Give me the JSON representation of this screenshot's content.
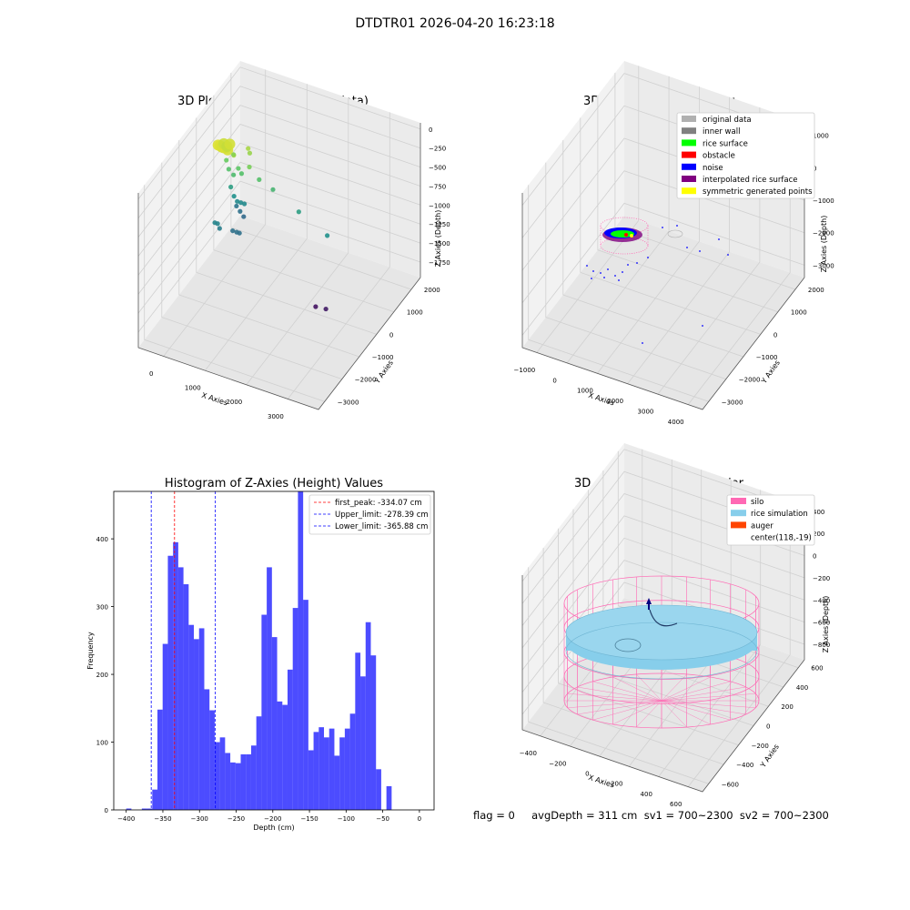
{
  "window": {
    "suptitle": "DTDTR01 2026-04-20 16:23:18"
  },
  "footer": {
    "text": "flag = 0     avgDepth = 311 cm  sv1 = 700~2300  sv2 = 700~2300"
  },
  "chart_data": [
    {
      "type": "scatter",
      "projection": "3d",
      "title": "3D Plot of Silo Interior(row data)",
      "xlabel": "X Axies",
      "ylabel": "Y Axies",
      "zlabel": "Z Axies (Depth)",
      "xticks": [
        "0",
        "1000",
        "2000",
        "3000"
      ],
      "yticks": [
        "2000",
        "1000",
        "0",
        "−1000",
        "−2000",
        "−3000"
      ],
      "zticks": [
        "0",
        "−250",
        "−500",
        "−750",
        "−1000",
        "−1250",
        "−1500",
        "−1750"
      ],
      "xlim": [
        -600,
        3900
      ],
      "ylim": [
        -3300,
        2400
      ],
      "zlim": [
        -1850,
        50
      ],
      "colormap": "viridis",
      "grid": true,
      "points_x": [
        120,
        170,
        210,
        260,
        310,
        360,
        150,
        230,
        300,
        400,
        260,
        80,
        140,
        260,
        380,
        460,
        80,
        160,
        240,
        330,
        420,
        110,
        200,
        290,
        180,
        60,
        130,
        350,
        450,
        520,
        580,
        620,
        700,
        900,
        1200,
        1800,
        2600,
        2700,
        2400
      ],
      "points_y": [
        -450,
        -450,
        -450,
        -450,
        -450,
        -450,
        -200,
        -200,
        -200,
        -200,
        100,
        100,
        100,
        100,
        100,
        100,
        350,
        350,
        350,
        350,
        350,
        600,
        600,
        600,
        -500,
        -500,
        -500,
        -150,
        -150,
        -150,
        200,
        200,
        0,
        100,
        200,
        300,
        100,
        -200,
        -100
      ],
      "points_z": [
        -50,
        -50,
        -60,
        -60,
        -50,
        -70,
        -100,
        -120,
        -80,
        -200,
        -300,
        -400,
        -500,
        -550,
        -450,
        -500,
        -800,
        -900,
        -950,
        -950,
        -950,
        -1100,
        -1150,
        -1200,
        -1050,
        -1000,
        -1000,
        -1150,
        -1150,
        -1150,
        -200,
        -250,
        -350,
        -500,
        -600,
        -800,
        -900,
        -1700,
        -1750
      ]
    },
    {
      "type": "scatter",
      "projection": "3d",
      "title": "3D classify of Silo Interior",
      "xlabel": "X Axies",
      "ylabel": "Y Axies",
      "zlabel": "Z Axies (Depth)",
      "xticks": [
        "−1000",
        "0",
        "1000",
        "2000",
        "3000",
        "4000"
      ],
      "yticks": [
        "2000",
        "1000",
        "0",
        "−1000",
        "−2000",
        "−3000"
      ],
      "zticks": [
        "1000",
        "0",
        "−1000",
        "−2000",
        "−3000"
      ],
      "xlim": [
        -1400,
        4500
      ],
      "ylim": [
        -3300,
        2400
      ],
      "zlim": [
        -3400,
        1400
      ],
      "grid": true,
      "legend_position": "upper right",
      "legend": [
        {
          "label": "original data",
          "color": "#b0b0b0"
        },
        {
          "label": "inner wall",
          "color": "#808080"
        },
        {
          "label": "rice surface",
          "color": "#00ff00"
        },
        {
          "label": "obstacle",
          "color": "#ff0000"
        },
        {
          "label": "noise",
          "color": "#0000ff"
        },
        {
          "label": "interpolated rice surface",
          "color": "#800080"
        },
        {
          "label": "symmetric generated points",
          "color": "#ffff00"
        }
      ]
    },
    {
      "type": "bar",
      "title": "Histogram of Z-Axies (Height) Values",
      "xlabel": "Depth (cm)",
      "ylabel": "Frequency",
      "xlim": [
        -417,
        20
      ],
      "ylim": [
        0,
        470
      ],
      "xticks": [
        -400,
        -350,
        -300,
        -250,
        -200,
        -150,
        -100,
        -50,
        0
      ],
      "yticks": [
        0,
        100,
        200,
        300,
        400
      ],
      "bar_color": "#0000ff",
      "bin_width": 7.1,
      "bins_start": [
        -400,
        -392.9,
        -385.8,
        -378.7,
        -371.6,
        -364.5,
        -357.4,
        -350.3,
        -343.2,
        -336.1,
        -329,
        -321.9,
        -314.8,
        -307.7,
        -300.6,
        -293.5,
        -286.4,
        -279.3,
        -272.2,
        -265.1,
        -258,
        -250.9,
        -243.8,
        -236.7,
        -229.6,
        -222.5,
        -215.4,
        -208.3,
        -201.2,
        -194.1,
        -187,
        -179.9,
        -172.8,
        -165.7,
        -158.6,
        -151.5,
        -144.4,
        -137.3,
        -130.2,
        -123.1,
        -116,
        -108.9,
        -101.8,
        -94.7,
        -87.6,
        -80.5,
        -73.4,
        -66.3,
        -59.2,
        -52.1,
        -45,
        -37.9,
        -30.8,
        -23.7,
        -16.6,
        -9.5,
        -2.4
      ],
      "values": [
        2,
        0,
        0,
        2,
        2,
        30,
        148,
        245,
        375,
        395,
        358,
        333,
        273,
        252,
        268,
        178,
        147,
        100,
        107,
        84,
        70,
        69,
        82,
        82,
        95,
        138,
        288,
        358,
        255,
        160,
        155,
        207,
        298,
        490,
        310,
        88,
        115,
        122,
        107,
        120,
        80,
        107,
        120,
        142,
        232,
        197,
        277,
        228,
        60,
        0,
        35,
        0,
        0,
        0,
        0,
        0,
        0
      ],
      "vlines": [
        {
          "x": -334.07,
          "color": "#ff0000",
          "label": "first_peak: -334.07 cm"
        },
        {
          "x": -278.39,
          "color": "#0000ff",
          "label": "Upper_limit: -278.39 cm"
        },
        {
          "x": -365.88,
          "color": "#0000ff",
          "label": "Lower_limit: -365.88 cm"
        }
      ],
      "legend_position": "upper right"
    },
    {
      "type": "surface",
      "projection": "3d",
      "title": "3D simulation of Silo Interior",
      "xlabel": "X Axies",
      "ylabel": "Y Axies",
      "zlabel": "Z Axies (Depth)",
      "xticks": [
        "−400",
        "−200",
        "0",
        "200",
        "400",
        "600"
      ],
      "yticks": [
        "600",
        "400",
        "200",
        "0",
        "−200",
        "−400",
        "−600"
      ],
      "zticks": [
        "400",
        "200",
        "0",
        "−200",
        "−400",
        "−600",
        "−800"
      ],
      "xlim": [
        -700,
        750
      ],
      "ylim": [
        -750,
        750
      ],
      "zlim": [
        -1000,
        500
      ],
      "grid": true,
      "legend_position": "upper right",
      "legend": [
        {
          "label": "silo",
          "color": "#ff69b4"
        },
        {
          "label": "rice simulation",
          "color": "#87ceeb"
        },
        {
          "label": "auger",
          "color": "#ff4500"
        },
        {
          "label": "center(118,-19)",
          "color": ""
        }
      ]
    }
  ]
}
